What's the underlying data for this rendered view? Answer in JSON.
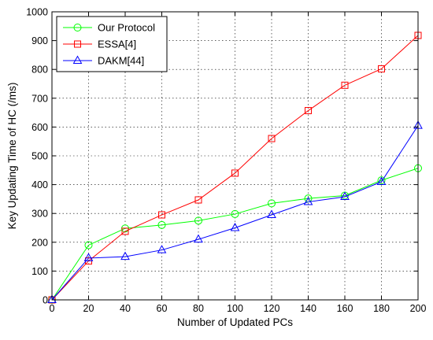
{
  "chart_data": {
    "type": "line",
    "xlabel": "Number of Updated PCs",
    "ylabel": "Key Updating Time of HC (/ms)",
    "xlim": [
      0,
      200
    ],
    "ylim": [
      0,
      1000
    ],
    "x_ticks": [
      "0",
      "20",
      "40",
      "60",
      "80",
      "100",
      "120",
      "140",
      "160",
      "180",
      "200"
    ],
    "y_ticks": [
      "0",
      "100",
      "200",
      "300",
      "400",
      "500",
      "600",
      "700",
      "800",
      "900",
      "1000"
    ],
    "grid": true,
    "legend_position": "top-left",
    "x": [
      0,
      20,
      40,
      60,
      80,
      100,
      120,
      140,
      160,
      180,
      200
    ],
    "series": [
      {
        "name": "Our Protocol",
        "color": "#00ff00",
        "marker": "circle",
        "values": [
          0,
          190,
          248,
          260,
          275,
          298,
          335,
          352,
          362,
          415,
          457
        ]
      },
      {
        "name": "ESSA[4]",
        "color": "#ff0000",
        "marker": "square",
        "values": [
          0,
          135,
          238,
          295,
          347,
          440,
          560,
          657,
          745,
          802,
          918
        ]
      },
      {
        "name": "DAKM[44]",
        "color": "#0000ff",
        "marker": "triangle",
        "values": [
          0,
          145,
          150,
          173,
          210,
          250,
          295,
          340,
          358,
          410,
          605
        ]
      }
    ]
  }
}
